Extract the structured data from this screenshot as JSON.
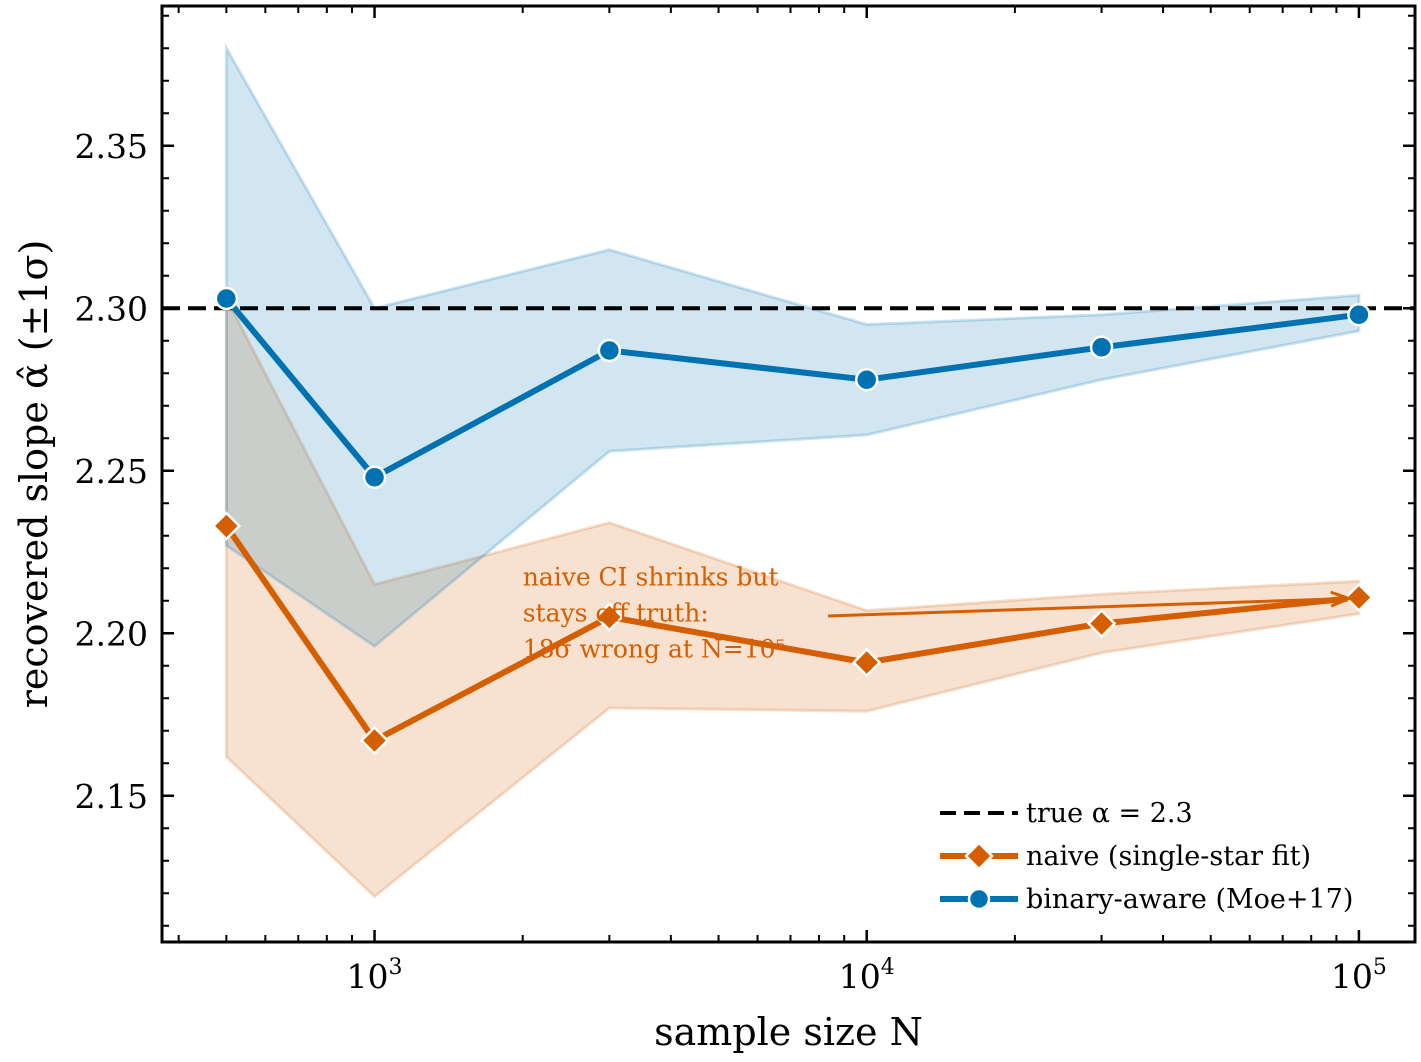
{
  "chart_data": {
    "type": "line",
    "xscale": "log",
    "xlabel": "sample size N",
    "ylabel": "recovered slope α̂ (±1σ)",
    "xlim": [
      370,
      130000
    ],
    "ylim": [
      2.105,
      2.393
    ],
    "x_ticks": [
      {
        "value": 1000,
        "base": "10",
        "exp": "3"
      },
      {
        "value": 10000,
        "base": "10",
        "exp": "4"
      },
      {
        "value": 100000,
        "base": "10",
        "exp": "5"
      }
    ],
    "y_ticks": [
      2.15,
      2.2,
      2.25,
      2.3,
      2.35
    ],
    "grid": false,
    "legend_position": "lower-right",
    "reference_line": {
      "name": "true α = 2.3",
      "value": 2.3,
      "color": "#000000",
      "style": "dashed"
    },
    "series": [
      {
        "name": "naive (single-star fit)",
        "color": "#d55e00",
        "marker": "diamond",
        "x": [
          500,
          1000,
          3000,
          10000,
          30000,
          100000
        ],
        "y": [
          2.233,
          2.167,
          2.205,
          2.191,
          2.203,
          2.211
        ],
        "lower": [
          2.162,
          2.119,
          2.177,
          2.176,
          2.194,
          2.206
        ],
        "upper": [
          2.303,
          2.215,
          2.234,
          2.207,
          2.212,
          2.216
        ]
      },
      {
        "name": "binary-aware (Moe+17)",
        "color": "#0072b2",
        "marker": "circle",
        "x": [
          500,
          1000,
          3000,
          10000,
          30000,
          100000
        ],
        "y": [
          2.303,
          2.248,
          2.287,
          2.278,
          2.288,
          2.298
        ],
        "lower": [
          2.227,
          2.196,
          2.256,
          2.261,
          2.278,
          2.293
        ],
        "upper": [
          2.38,
          2.3,
          2.318,
          2.295,
          2.298,
          2.304
        ]
      }
    ],
    "annotation": {
      "lines": [
        "naive CI shrinks but",
        "stays off truth:",
        "18σ wrong at N=10⁵"
      ],
      "color": "#d55e00",
      "text_at": {
        "x": 2000,
        "y": 2.208
      },
      "arrow_to": {
        "x": 100000,
        "y": 2.211
      }
    }
  }
}
